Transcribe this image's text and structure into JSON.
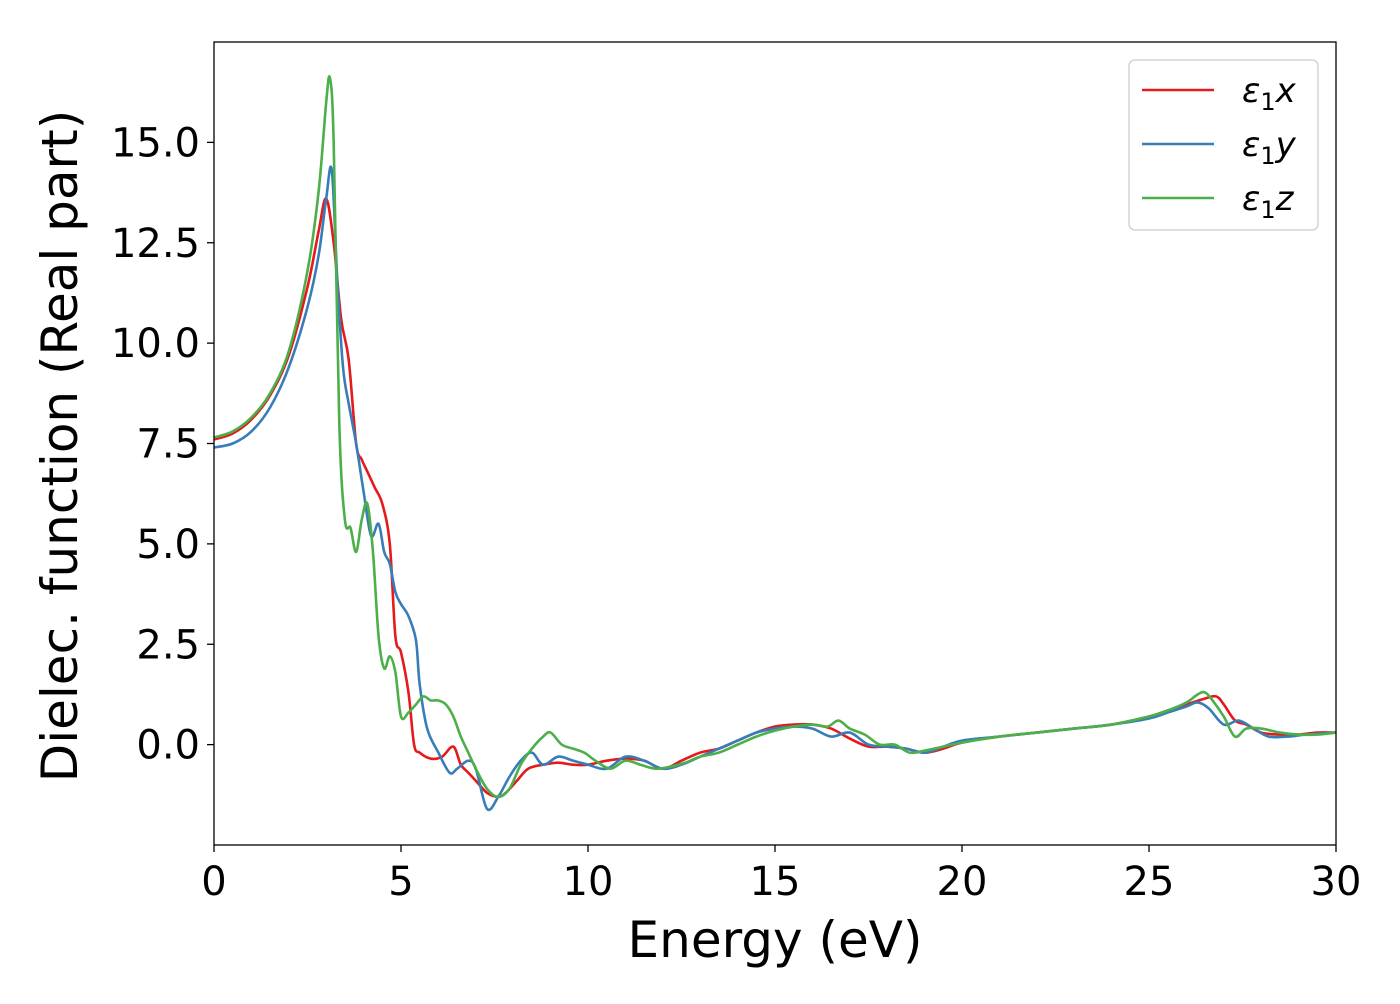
{
  "chart_data": {
    "type": "line",
    "title": "",
    "xlabel": "Energy (eV)",
    "ylabel": "Dielec. function (Real part)",
    "xlim": [
      0,
      30
    ],
    "ylim": [
      -2.5,
      17.5
    ],
    "xticks": [
      0,
      5,
      10,
      15,
      20,
      25,
      30
    ],
    "xtick_labels": [
      "0",
      "5",
      "10",
      "15",
      "20",
      "25",
      "30"
    ],
    "yticks": [
      0.0,
      2.5,
      5.0,
      7.5,
      10.0,
      12.5,
      15.0
    ],
    "ytick_labels": [
      "0.0",
      "2.5",
      "5.0",
      "7.5",
      "10.0",
      "12.5",
      "15.0"
    ],
    "grid": false,
    "legend_position": "top-right",
    "series": [
      {
        "name": "ε₁x",
        "legend_main": "ε",
        "legend_sub": "1",
        "legend_suffix": "x",
        "color": "#e41a1c",
        "x": [
          0,
          0.5,
          1.0,
          1.5,
          2.0,
          2.5,
          2.8,
          3.0,
          3.2,
          3.4,
          3.6,
          3.8,
          3.95,
          4.1,
          4.3,
          4.5,
          4.7,
          4.85,
          5.0,
          5.2,
          5.35,
          5.5,
          5.8,
          6.1,
          6.4,
          6.6,
          6.8,
          7.0,
          7.3,
          7.6,
          7.8,
          8.1,
          8.4,
          8.8,
          9.2,
          9.6,
          10.0,
          10.5,
          11.0,
          11.5,
          12.0,
          12.5,
          13.0,
          13.5,
          14.0,
          14.5,
          15.0,
          15.5,
          16.0,
          16.5,
          17.0,
          17.5,
          18.0,
          18.5,
          19.0,
          19.5,
          20.0,
          21.0,
          22.0,
          23.0,
          24.0,
          25.0,
          25.5,
          26.0,
          26.5,
          26.8,
          27.0,
          27.3,
          27.6,
          28.0,
          28.5,
          29.0,
          29.5,
          30.0
        ],
        "y": [
          7.6,
          7.75,
          8.1,
          8.7,
          9.7,
          11.4,
          12.8,
          13.6,
          12.5,
          10.6,
          9.6,
          7.5,
          7.1,
          6.8,
          6.4,
          6.0,
          5.0,
          2.7,
          2.3,
          1.3,
          0.0,
          -0.2,
          -0.35,
          -0.3,
          -0.05,
          -0.5,
          -0.7,
          -0.9,
          -1.2,
          -1.3,
          -1.2,
          -0.9,
          -0.6,
          -0.5,
          -0.45,
          -0.5,
          -0.5,
          -0.4,
          -0.35,
          -0.4,
          -0.6,
          -0.4,
          -0.2,
          -0.1,
          0.1,
          0.3,
          0.45,
          0.5,
          0.5,
          0.4,
          0.15,
          -0.05,
          -0.05,
          -0.1,
          -0.2,
          -0.1,
          0.05,
          0.2,
          0.3,
          0.4,
          0.5,
          0.7,
          0.85,
          1.0,
          1.15,
          1.2,
          1.0,
          0.6,
          0.5,
          0.3,
          0.25,
          0.25,
          0.3,
          0.3
        ]
      },
      {
        "name": "ε₁y",
        "legend_main": "ε",
        "legend_sub": "1",
        "legend_suffix": "y",
        "color": "#377eb8",
        "x": [
          0,
          0.5,
          1.0,
          1.5,
          2.0,
          2.5,
          2.8,
          3.0,
          3.15,
          3.3,
          3.45,
          3.6,
          3.8,
          4.0,
          4.2,
          4.4,
          4.55,
          4.7,
          4.85,
          5.0,
          5.2,
          5.4,
          5.5,
          5.7,
          6.0,
          6.3,
          6.5,
          6.8,
          7.0,
          7.3,
          7.6,
          7.9,
          8.2,
          8.5,
          8.8,
          9.2,
          9.6,
          10.0,
          10.5,
          11.0,
          11.5,
          12.0,
          12.5,
          13.0,
          13.5,
          14.0,
          14.5,
          15.0,
          15.5,
          16.0,
          16.5,
          17.0,
          17.5,
          18.0,
          18.5,
          19.0,
          19.5,
          20.0,
          21.0,
          22.0,
          23.0,
          24.0,
          25.0,
          25.5,
          26.0,
          26.3,
          26.6,
          27.0,
          27.4,
          27.8,
          28.2,
          28.7,
          29.2,
          30.0
        ],
        "y": [
          7.4,
          7.5,
          7.8,
          8.4,
          9.4,
          10.9,
          12.2,
          13.6,
          14.3,
          11.5,
          9.4,
          8.5,
          7.5,
          6.3,
          5.2,
          5.5,
          4.8,
          4.5,
          3.8,
          3.5,
          3.2,
          2.6,
          1.5,
          0.4,
          -0.2,
          -0.7,
          -0.6,
          -0.4,
          -0.6,
          -1.6,
          -1.3,
          -0.8,
          -0.4,
          -0.2,
          -0.5,
          -0.3,
          -0.4,
          -0.5,
          -0.6,
          -0.3,
          -0.4,
          -0.6,
          -0.5,
          -0.3,
          -0.1,
          0.1,
          0.3,
          0.4,
          0.45,
          0.4,
          0.2,
          0.3,
          0.0,
          -0.05,
          -0.1,
          -0.2,
          -0.05,
          0.1,
          0.2,
          0.3,
          0.4,
          0.5,
          0.65,
          0.8,
          0.95,
          1.05,
          0.9,
          0.5,
          0.6,
          0.4,
          0.2,
          0.2,
          0.25,
          0.3
        ]
      },
      {
        "name": "ε₁z",
        "legend_main": "ε",
        "legend_sub": "1",
        "legend_suffix": "z",
        "color": "#4daf4a",
        "x": [
          0,
          0.5,
          1.0,
          1.5,
          2.0,
          2.5,
          2.8,
          3.0,
          3.1,
          3.2,
          3.35,
          3.5,
          3.65,
          3.8,
          3.95,
          4.1,
          4.25,
          4.4,
          4.55,
          4.7,
          4.85,
          5.0,
          5.2,
          5.4,
          5.6,
          5.8,
          6.0,
          6.2,
          6.4,
          6.6,
          6.8,
          7.0,
          7.3,
          7.6,
          7.9,
          8.2,
          8.5,
          8.8,
          9.0,
          9.3,
          9.6,
          9.9,
          10.2,
          10.6,
          11.0,
          11.4,
          11.8,
          12.2,
          12.6,
          13.0,
          13.5,
          14.0,
          14.5,
          15.0,
          15.5,
          16.0,
          16.4,
          16.7,
          17.0,
          17.4,
          17.8,
          18.2,
          18.6,
          19.0,
          19.5,
          20.0,
          21.0,
          22.0,
          23.0,
          24.0,
          25.0,
          25.5,
          26.0,
          26.3,
          26.5,
          26.7,
          27.0,
          27.3,
          27.6,
          28.0,
          28.5,
          29.0,
          29.5,
          30.0
        ],
        "y": [
          7.65,
          7.8,
          8.15,
          8.75,
          9.8,
          11.8,
          13.8,
          16.0,
          16.6,
          15.0,
          8.0,
          5.6,
          5.4,
          4.8,
          5.6,
          6.0,
          4.8,
          2.7,
          1.9,
          2.2,
          1.8,
          0.7,
          0.8,
          1.0,
          1.2,
          1.1,
          1.1,
          1.0,
          0.7,
          0.2,
          -0.2,
          -0.6,
          -1.1,
          -1.3,
          -1.1,
          -0.5,
          -0.1,
          0.2,
          0.3,
          0.0,
          -0.1,
          -0.2,
          -0.4,
          -0.6,
          -0.4,
          -0.5,
          -0.6,
          -0.55,
          -0.45,
          -0.3,
          -0.2,
          0.0,
          0.2,
          0.35,
          0.45,
          0.5,
          0.45,
          0.6,
          0.4,
          0.25,
          0.0,
          0.0,
          -0.2,
          -0.15,
          -0.05,
          0.05,
          0.2,
          0.3,
          0.4,
          0.5,
          0.7,
          0.85,
          1.05,
          1.25,
          1.3,
          1.1,
          0.7,
          0.2,
          0.4,
          0.4,
          0.3,
          0.25,
          0.25,
          0.3
        ]
      }
    ]
  }
}
